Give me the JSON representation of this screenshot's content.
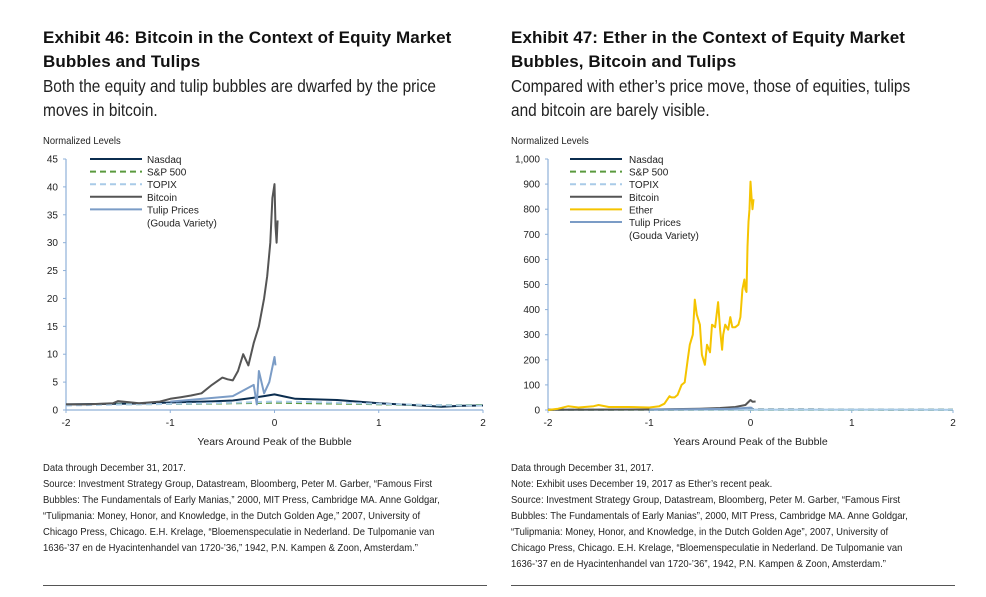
{
  "colors": {
    "nasdaq": "#0b2d4f",
    "sp500": "#5a9a3e",
    "topix": "#a9cbe8",
    "bitcoin": "#555555",
    "ether": "#f5c400",
    "tulip": "#7b9cc6",
    "axis": "#8fb0d8"
  },
  "left": {
    "title": "Exhibit 46: Bitcoin in the Context of Equity Market Bubbles and Tulips",
    "title_line1": "Exhibit 46: Bitcoin in the Context of Equity Market",
    "title_line2": "Bubbles and Tulips",
    "subtitle_line1": "Both the equity and tulip bubbles are dwarfed by the price",
    "subtitle_line2": "moves in bitcoin.",
    "y_axis_label": "Normalized Levels",
    "notes": [
      "Data through December 31, 2017.",
      "Source: Investment Strategy Group, Datastream, Bloomberg, Peter M. Garber, “Famous First",
      "Bubbles: The Fundamentals of Early Manias,” 2000, MIT Press, Cambridge MA. Anne Goldgar,",
      "“Tulipmania: Money, Honor, and Knowledge, in the Dutch Golden Age,” 2007, University of",
      "Chicago Press, Chicago. E.H. Krelage, “Bloemenspeculatie in Nederland. De Tulpomanie van",
      "1636-’37 en de Hyacintenhandel van 1720-’36,” 1942, P.N. Kampen & Zoon, Amsterdam.”"
    ]
  },
  "right": {
    "title_line1": "Exhibit 47: Ether in the Context of Equity Market",
    "title_line2": "Bubbles, Bitcoin and Tulips",
    "subtitle_line1": "Compared with ether’s price move, those of equities, tulips",
    "subtitle_line2": "and bitcoin are barely visible.",
    "y_axis_label": "Normalized Levels",
    "notes": [
      "Data through December 31, 2017.",
      "Note: Exhibit uses December 19, 2017 as Ether’s recent peak.",
      "Source: Investment Strategy Group, Datastream, Bloomberg, Peter M. Garber, “Famous First",
      "Bubbles: The Fundamentals of Early Manias”, 2000, MIT Press, Cambridge MA.  Anne Goldgar,",
      "“Tulipmania: Money, Honor, and Knowledge, in the Dutch Golden Age”,  2007, University of",
      "Chicago Press, Chicago.  E.H. Krelage,  “Bloemenspeculatie in Nederland. De Tulpomanie van",
      "1636-’37 en de Hyacintenhandel van 1720-’36”, 1942, P.N. Kampen & Zoon, Amsterdam.”"
    ]
  },
  "chart_data": [
    {
      "type": "line",
      "title": "Exhibit 46: Bitcoin in the Context of Equity Market Bubbles and Tulips",
      "xlabel": "Years Around Peak of the Bubble",
      "ylabel": "Normalized Levels",
      "xlim": [
        -2,
        2
      ],
      "ylim": [
        0,
        45
      ],
      "xticks": [
        -2,
        -1,
        0,
        1,
        2
      ],
      "yticks": [
        0,
        5,
        10,
        15,
        20,
        25,
        30,
        35,
        40,
        45
      ],
      "ytick_labels": [
        "0",
        "5",
        "10",
        "15",
        "20",
        "25",
        "30",
        "35",
        "40",
        "45"
      ],
      "legend_position": "top-left",
      "legend": [
        "Nasdaq",
        "S&P 500",
        "TOPIX",
        "Bitcoin",
        "Tulip Prices (Gouda Variety)"
      ],
      "series": [
        {
          "name": "Nasdaq",
          "key": "nasdaq",
          "dash": false,
          "x": [
            -2,
            -1.8,
            -1.6,
            -1.4,
            -1.2,
            -1.0,
            -0.8,
            -0.6,
            -0.4,
            -0.2,
            -0.1,
            0,
            0.1,
            0.2,
            0.4,
            0.6,
            0.8,
            1.0,
            1.2,
            1.4,
            1.6,
            1.8,
            2.0
          ],
          "y": [
            1.0,
            1.05,
            1.1,
            1.15,
            1.2,
            1.35,
            1.45,
            1.55,
            1.7,
            2.2,
            2.5,
            2.8,
            2.4,
            2.0,
            1.9,
            1.8,
            1.5,
            1.2,
            1.0,
            0.8,
            0.6,
            0.75,
            0.8
          ]
        },
        {
          "name": "S&P 500",
          "key": "sp500",
          "dash": true,
          "x": [
            -2,
            -1.6,
            -1.2,
            -0.8,
            -0.4,
            0,
            0.4,
            0.8,
            1.2,
            1.6,
            2.0
          ],
          "y": [
            0.9,
            1.0,
            1.05,
            1.1,
            1.2,
            1.3,
            1.2,
            1.1,
            0.95,
            0.85,
            0.9
          ]
        },
        {
          "name": "TOPIX",
          "key": "topix",
          "dash": true,
          "x": [
            -2,
            -1.6,
            -1.2,
            -0.8,
            -0.4,
            0,
            0.4,
            0.8,
            1.2,
            1.6,
            2.0
          ],
          "y": [
            0.8,
            0.95,
            1.05,
            1.15,
            1.3,
            1.5,
            1.4,
            1.2,
            1.0,
            0.85,
            0.8
          ]
        },
        {
          "name": "Bitcoin",
          "key": "bitcoin",
          "dash": false,
          "x": [
            -2,
            -1.8,
            -1.55,
            -1.5,
            -1.3,
            -1.1,
            -1.0,
            -0.9,
            -0.8,
            -0.7,
            -0.6,
            -0.5,
            -0.45,
            -0.4,
            -0.35,
            -0.3,
            -0.25,
            -0.2,
            -0.15,
            -0.1,
            -0.07,
            -0.04,
            -0.02,
            0,
            0.01,
            0.02,
            0.03
          ],
          "y": [
            1.0,
            1.0,
            1.2,
            1.6,
            1.2,
            1.5,
            2.0,
            2.3,
            2.6,
            3.0,
            4.5,
            5.8,
            5.5,
            5.3,
            7.0,
            10.0,
            8.0,
            12.0,
            15.0,
            20.0,
            24.0,
            30.0,
            38.0,
            40.5,
            33.0,
            30.0,
            34.0
          ]
        },
        {
          "name": "Tulip Prices (Gouda Variety)",
          "key": "tulip",
          "dash": false,
          "x": [
            -1.0,
            -0.4,
            -0.2,
            -0.17,
            -0.15,
            -0.1,
            -0.05,
            0.0,
            0.01
          ],
          "y": [
            1.5,
            2.5,
            4.5,
            1.0,
            7.0,
            3.0,
            5.0,
            9.5,
            8.0
          ]
        }
      ]
    },
    {
      "type": "line",
      "title": "Exhibit 47: Ether in the Context of Equity Market Bubbles, Bitcoin and Tulips",
      "xlabel": "Years Around Peak of the Bubble",
      "ylabel": "Normalized Levels",
      "xlim": [
        -2,
        2
      ],
      "ylim": [
        0,
        1000
      ],
      "xticks": [
        -2,
        -1,
        0,
        1,
        2
      ],
      "yticks": [
        0,
        100,
        200,
        300,
        400,
        500,
        600,
        700,
        800,
        900,
        1000
      ],
      "ytick_labels": [
        "0",
        "100",
        "200",
        "300",
        "400",
        "500",
        "600",
        "700",
        "800",
        "900",
        "1,000"
      ],
      "legend_position": "top-left",
      "legend": [
        "Nasdaq",
        "S&P 500",
        "TOPIX",
        "Bitcoin",
        "Ether",
        "Tulip Prices (Gouda Variety)"
      ],
      "series": [
        {
          "name": "Nasdaq",
          "key": "nasdaq",
          "dash": true,
          "x": [
            -2,
            0,
            2
          ],
          "y": [
            1,
            2.8,
            1
          ]
        },
        {
          "name": "S&P 500",
          "key": "sp500",
          "dash": true,
          "x": [
            -2,
            0,
            2
          ],
          "y": [
            1,
            1.3,
            1
          ]
        },
        {
          "name": "TOPIX",
          "key": "topix",
          "dash": false,
          "x": [
            -2,
            0,
            2
          ],
          "y": [
            1,
            1.5,
            1
          ]
        },
        {
          "name": "Bitcoin",
          "key": "bitcoin",
          "dash": false,
          "x": [
            -2,
            -1.0,
            -0.5,
            -0.3,
            -0.15,
            -0.05,
            0,
            0.02,
            0.05
          ],
          "y": [
            1,
            2,
            5,
            8,
            12,
            20,
            40,
            33,
            34
          ]
        },
        {
          "name": "Ether",
          "key": "ether",
          "dash": false,
          "x": [
            -2,
            -1.9,
            -1.8,
            -1.7,
            -1.55,
            -1.5,
            -1.4,
            -1.2,
            -1.0,
            -0.9,
            -0.85,
            -0.8,
            -0.78,
            -0.75,
            -0.72,
            -0.68,
            -0.65,
            -0.62,
            -0.6,
            -0.57,
            -0.55,
            -0.53,
            -0.5,
            -0.48,
            -0.45,
            -0.43,
            -0.4,
            -0.38,
            -0.35,
            -0.32,
            -0.3,
            -0.28,
            -0.27,
            -0.25,
            -0.22,
            -0.2,
            -0.18,
            -0.15,
            -0.12,
            -0.1,
            -0.08,
            -0.06,
            -0.05,
            -0.04,
            -0.03,
            -0.02,
            -0.01,
            0,
            0.01,
            0.02,
            0.03
          ],
          "y": [
            0,
            5,
            15,
            10,
            15,
            20,
            12,
            12,
            10,
            15,
            25,
            55,
            50,
            50,
            60,
            100,
            110,
            200,
            260,
            300,
            440,
            380,
            340,
            220,
            180,
            260,
            230,
            340,
            330,
            430,
            320,
            240,
            300,
            340,
            320,
            370,
            330,
            330,
            340,
            370,
            480,
            520,
            480,
            470,
            650,
            750,
            800,
            910,
            850,
            800,
            840
          ]
        },
        {
          "name": "Tulip Prices (Gouda Variety)",
          "key": "tulip",
          "dash": false,
          "x": [
            -1,
            -0.2,
            0,
            0.02
          ],
          "y": [
            1.5,
            4.5,
            9.5,
            8
          ]
        }
      ]
    }
  ]
}
